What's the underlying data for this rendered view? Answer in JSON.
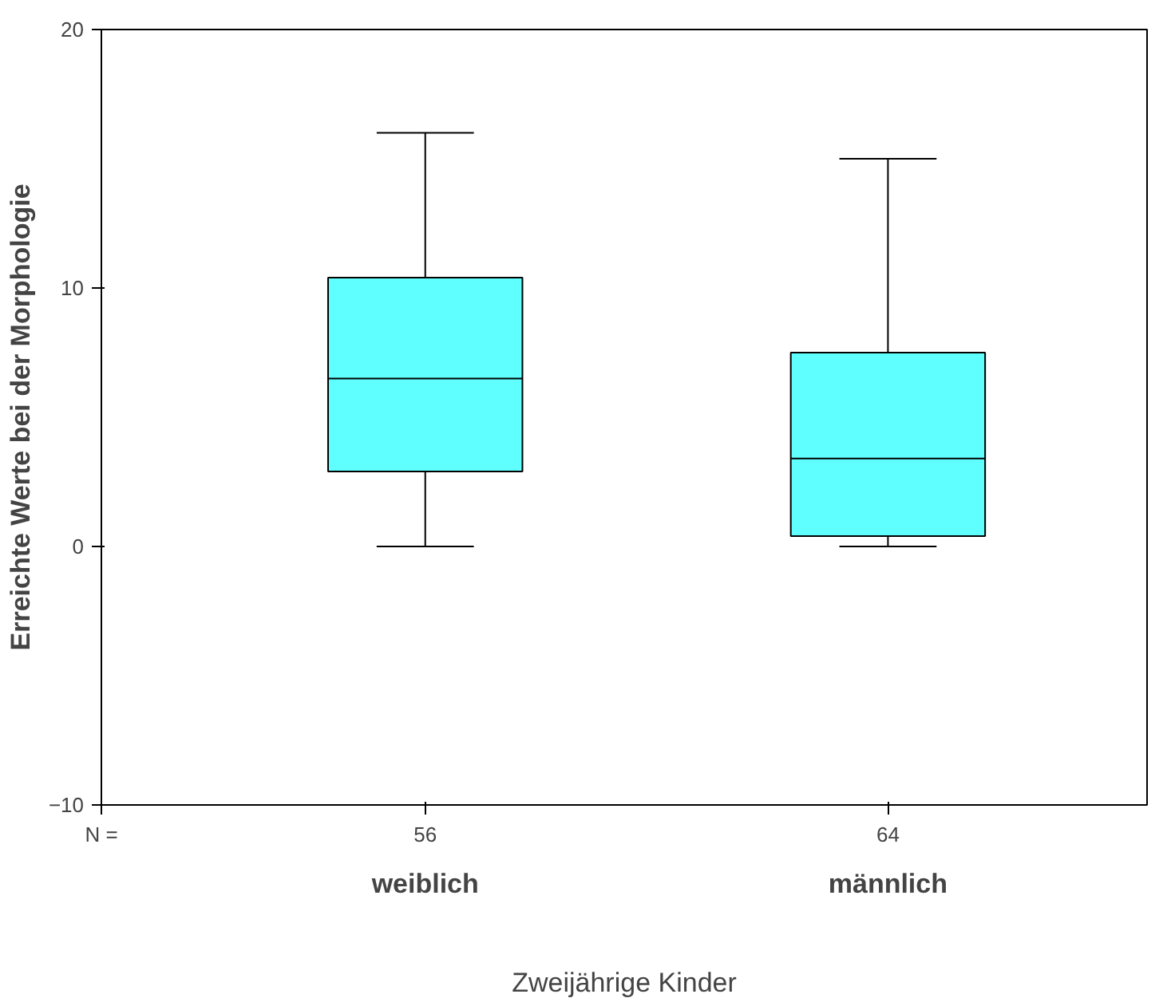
{
  "chart_data": {
    "type": "box",
    "categories": [
      "weiblich",
      "männlich"
    ],
    "boxes": [
      {
        "low": 0,
        "q1": 2.9,
        "median": 6.5,
        "q3": 10.4,
        "high": 16
      },
      {
        "low": 0,
        "q1": 0.4,
        "median": 3.4,
        "q3": 7.5,
        "high": 15
      }
    ],
    "color": "#60ffff",
    "xlabel": "Zweijährige Kinder",
    "ylabel": "Erreichte Werte bei der Morphologie",
    "ylim": [
      -10,
      20
    ],
    "yticks": [
      -10,
      0,
      10,
      20
    ],
    "grid": false,
    "annotations": [
      "N =",
      "56",
      "64"
    ]
  }
}
